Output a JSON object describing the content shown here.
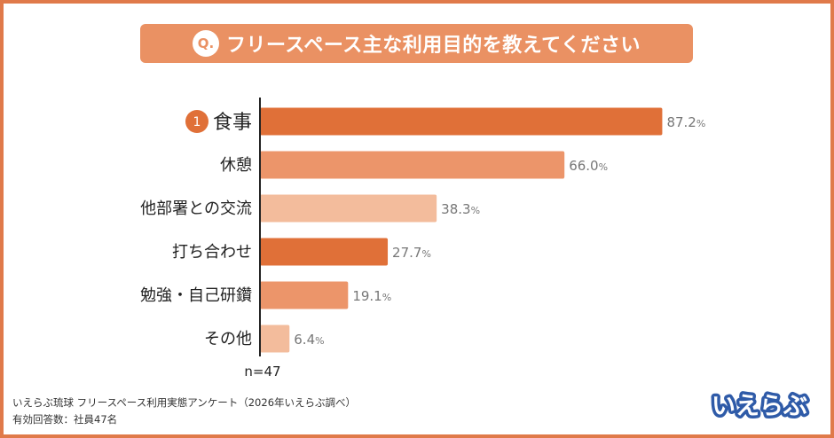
{
  "header": {
    "q_badge": "Q.",
    "title": "フリースペース主な利用目的を教えてください"
  },
  "chart_data": {
    "type": "bar",
    "orientation": "horizontal",
    "categories": [
      "食事",
      "休憩",
      "他部署との交流",
      "打ち合わせ",
      "勉強・自己研鑽",
      "その他"
    ],
    "values": [
      87.2,
      66.0,
      38.3,
      27.7,
      19.1,
      6.4
    ],
    "value_labels": [
      "87.2",
      "66.0",
      "38.3",
      "27.7",
      "19.1",
      "6.4"
    ],
    "unit": "%",
    "rank_badge": "1",
    "bar_colors": [
      "#e07038",
      "#ec956a",
      "#f3bc9c",
      "#e07038",
      "#ec956a",
      "#f3bc9c"
    ],
    "xlim": [
      0,
      100
    ],
    "grid": false,
    "sample_size": "n=47"
  },
  "footer": {
    "source": "いえらぶ琉球 フリースペース利用実態アンケート（2026年いえらぶ調べ）",
    "respondents": "有効回答数：社員47名"
  },
  "logo": {
    "text": "いえらぶ",
    "color": "#2f5ba8"
  },
  "colors": {
    "frame": "#e07a4a",
    "banner": "#ea9163",
    "axis": "#222222",
    "value_label": "#777777"
  }
}
